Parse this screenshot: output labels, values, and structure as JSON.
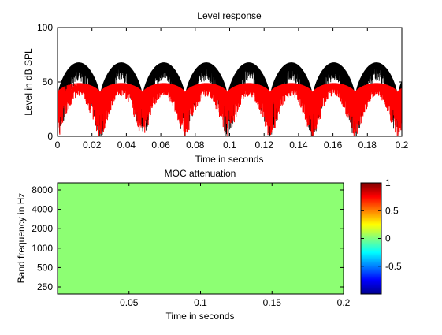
{
  "chart_data": [
    {
      "type": "line",
      "title": "Level response",
      "xlabel": "Time in seconds",
      "ylabel": "Level in dB SPL",
      "xlim": [
        0,
        0.2
      ],
      "ylim": [
        0,
        100
      ],
      "x_ticks": [
        "0",
        "0.02",
        "0.04",
        "0.06",
        "0.08",
        "0.1",
        "0.12",
        "0.14",
        "0.16",
        "0.18",
        "0.2"
      ],
      "y_ticks": [
        "0",
        "50",
        "100"
      ],
      "grid": false,
      "series": [
        {
          "color": "#000000",
          "description_shape": "periodic humps (period ~0.025 s) with dense dips",
          "envelope_peak": 68,
          "envelope_trough": 35,
          "period": 0.0247,
          "min_dip": 0
        },
        {
          "color": "#ff0000",
          "envelope_peak": 49,
          "envelope_trough": 40,
          "period": 0.0247,
          "min_dip": 0
        }
      ]
    },
    {
      "type": "heatmap",
      "title": "MOC attenuation",
      "xlabel": "Time in seconds",
      "ylabel": "Band frequency in Hz",
      "xlim": [
        0,
        0.2
      ],
      "x_ticks": [
        "0.05",
        "0.1",
        "0.15",
        "0.2"
      ],
      "y_ticks": [
        "8000",
        "4000",
        "2000",
        "1000",
        "500",
        "250"
      ],
      "value": 0,
      "fill_color": "#8dff73",
      "colorbar": {
        "colormap": "jet",
        "range": [
          -1,
          1
        ],
        "ticks": [
          "1",
          "0.5",
          "0",
          "-0.5"
        ]
      }
    }
  ]
}
